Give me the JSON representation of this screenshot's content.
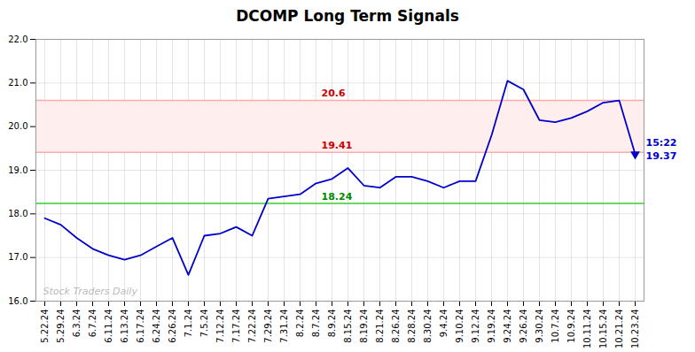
{
  "chart_data": {
    "type": "line",
    "title": "DCOMP Long Term Signals",
    "categories": [
      "5.22.24",
      "5.29.24",
      "6.3.24",
      "6.7.24",
      "6.11.24",
      "6.13.24",
      "6.17.24",
      "6.24.24",
      "6.26.24",
      "7.1.24",
      "7.5.24",
      "7.12.24",
      "7.17.24",
      "7.22.24",
      "7.29.24",
      "7.31.24",
      "8.2.24",
      "8.7.24",
      "8.9.24",
      "8.15.24",
      "8.19.24",
      "8.21.24",
      "8.26.24",
      "8.28.24",
      "8.30.24",
      "9.4.24",
      "9.10.24",
      "9.12.24",
      "9.19.24",
      "9.24.24",
      "9.26.24",
      "9.30.24",
      "10.7.24",
      "10.9.24",
      "10.11.24",
      "10.15.24",
      "10.21.24",
      "10.23.24"
    ],
    "values": [
      17.9,
      17.75,
      17.45,
      17.2,
      17.05,
      16.95,
      17.05,
      17.25,
      17.45,
      16.6,
      17.5,
      17.55,
      17.7,
      17.5,
      18.35,
      18.4,
      18.45,
      18.7,
      18.8,
      19.05,
      18.65,
      18.6,
      18.85,
      18.85,
      18.75,
      18.6,
      18.75,
      18.75,
      19.8,
      21.05,
      20.85,
      20.15,
      20.1,
      20.2,
      20.35,
      20.55,
      20.6,
      19.37
    ],
    "color": "#0000cc",
    "ylim": [
      16,
      22
    ],
    "yticks": [
      16,
      17,
      18,
      19,
      20,
      21,
      22
    ],
    "grid": true,
    "hlines": [
      {
        "value": 18.24,
        "color": "#33cc33",
        "label": "18.24",
        "label_color": "#008800"
      },
      {
        "value": 19.41,
        "color": "#ffaaaa",
        "label": "19.41",
        "label_color": "#cc0000"
      },
      {
        "value": 20.6,
        "color": "#ffaaaa",
        "label": "20.6",
        "label_color": "#cc0000"
      }
    ],
    "band": {
      "from": 19.41,
      "to": 20.6,
      "color": "#ffeeee"
    },
    "end_labels": [
      "15:22",
      "19.37"
    ],
    "end_label_color": "#0000cc",
    "watermark": "Stock Traders Daily",
    "watermark_color": "#bbbbbb"
  }
}
